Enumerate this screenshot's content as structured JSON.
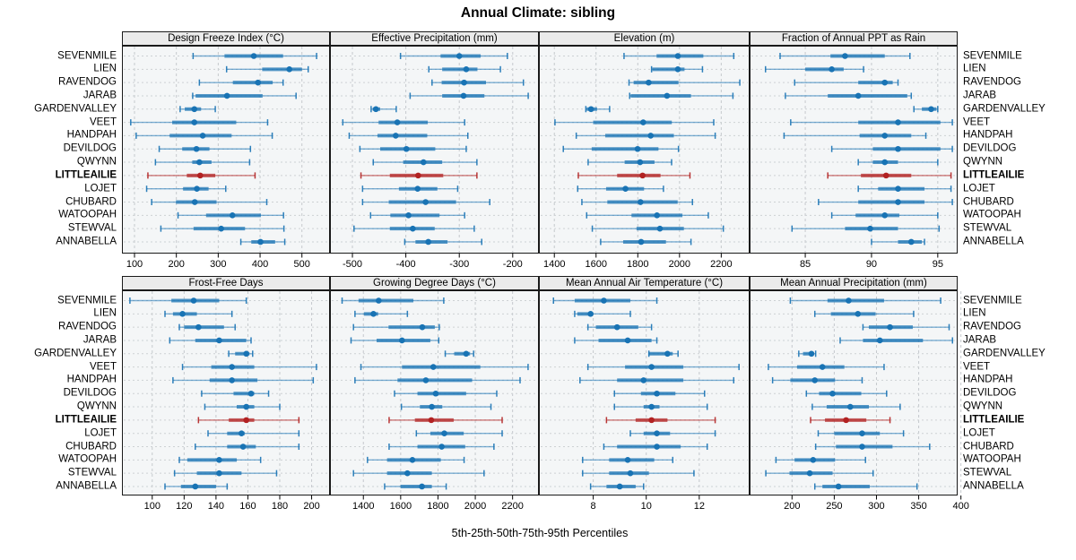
{
  "page": {
    "title": "Annual Climate: sibling",
    "footer": "5th-25th-50th-75th-95th Percentiles"
  },
  "chart_data": {
    "type": "dotplot",
    "title": "Annual Climate: sibling",
    "xlabel": "5th-25th-50th-75th-95th Percentiles",
    "legend_position": "none",
    "grid": "dashed-vertical",
    "percentiles": [
      5,
      25,
      50,
      75,
      95
    ],
    "sites": [
      "SEVENMILE",
      "LIEN",
      "RAVENDOG",
      "JARAB",
      "GARDENVALLEY",
      "VEET",
      "HANDPAH",
      "DEVILDOG",
      "QWYNN",
      "LITTLEAILIE",
      "LOJET",
      "CHUBARD",
      "WATOOPAH",
      "STEWVAL",
      "ANNABELLA"
    ],
    "highlight_site": "LITTLEAILIE",
    "colors": {
      "series": "#1873b4",
      "highlight": "#b22222",
      "panel_bg": "#f4f6f7",
      "strip_bg": "#ebebeb",
      "gridline": "#c5c9cd",
      "row_guide": "#cdd1d4",
      "border": "#1a1a1a"
    },
    "panels": [
      {
        "title": "Design Freeze Index (°C)",
        "row": 0,
        "col": 0,
        "xlim": [
          70,
          567
        ],
        "ticks": [
          100,
          200,
          300,
          400,
          500
        ],
        "values": [
          [
            240,
            315,
            385,
            455,
            535
          ],
          [
            320,
            405,
            470,
            500,
            515
          ],
          [
            255,
            335,
            395,
            430,
            455
          ],
          [
            239,
            246,
            321,
            406,
            486
          ],
          [
            209,
            220,
            243,
            259,
            293
          ],
          [
            91,
            190,
            243,
            343,
            418
          ],
          [
            104,
            184,
            263,
            332,
            429
          ],
          [
            159,
            214,
            248,
            279,
            377
          ],
          [
            150,
            238,
            255,
            284,
            375
          ],
          [
            132,
            225,
            257,
            293,
            388
          ],
          [
            129,
            216,
            249,
            277,
            318
          ],
          [
            141,
            199,
            244,
            296,
            416
          ],
          [
            204,
            271,
            334,
            402,
            456
          ],
          [
            163,
            241,
            307,
            364,
            457
          ],
          [
            354,
            379,
            401,
            436,
            459
          ]
        ]
      },
      {
        "title": "Effective Precipitation (mm)",
        "row": 0,
        "col": 1,
        "xlim": [
          -542,
          -151
        ],
        "ticks": [
          -500,
          -400,
          -300,
          -200
        ],
        "values": [
          [
            -410,
            -335,
            -300,
            -260,
            -210
          ],
          [
            -357,
            -332,
            -287,
            -266,
            -223
          ],
          [
            -351,
            -333,
            -291,
            -250,
            -180
          ],
          [
            -392,
            -332,
            -292,
            -253,
            -171
          ],
          [
            -465,
            -462,
            -456,
            -448,
            -418
          ],
          [
            -518,
            -451,
            -416,
            -359,
            -290
          ],
          [
            -506,
            -453,
            -419,
            -360,
            -284
          ],
          [
            -486,
            -448,
            -399,
            -345,
            -287
          ],
          [
            -461,
            -405,
            -367,
            -332,
            -267
          ],
          [
            -484,
            -430,
            -377,
            -330,
            -267
          ],
          [
            -481,
            -413,
            -378,
            -341,
            -303
          ],
          [
            -481,
            -432,
            -363,
            -306,
            -243
          ],
          [
            -466,
            -429,
            -395,
            -337,
            -290
          ],
          [
            -497,
            -430,
            -387,
            -346,
            -272
          ],
          [
            -402,
            -382,
            -358,
            -322,
            -258
          ]
        ]
      },
      {
        "title": "Elevation (m)",
        "row": 0,
        "col": 2,
        "xlim": [
          1326,
          2336
        ],
        "ticks": [
          1400,
          1600,
          1800,
          2000,
          2200
        ],
        "values": [
          [
            1734,
            1890,
            1992,
            2114,
            2260
          ],
          [
            1866,
            1870,
            1992,
            2024,
            2110
          ],
          [
            1758,
            1780,
            1852,
            1995,
            2289
          ],
          [
            1761,
            1766,
            1940,
            2055,
            2256
          ],
          [
            1551,
            1555,
            1576,
            1605,
            1665
          ],
          [
            1403,
            1586,
            1826,
            1963,
            2164
          ],
          [
            1505,
            1644,
            1862,
            1973,
            2171
          ],
          [
            1443,
            1579,
            1799,
            1899,
            1995
          ],
          [
            1562,
            1737,
            1811,
            1880,
            1962
          ],
          [
            1515,
            1701,
            1823,
            1909,
            2050
          ],
          [
            1512,
            1648,
            1741,
            1830,
            1923
          ],
          [
            1532,
            1654,
            1813,
            1991,
            2062
          ],
          [
            1555,
            1770,
            1892,
            2014,
            2138
          ],
          [
            1582,
            1794,
            1906,
            2021,
            2210
          ],
          [
            1622,
            1730,
            1816,
            1935,
            2055
          ]
        ]
      },
      {
        "title": "Fraction of Annual PPT as Rain",
        "row": 0,
        "col": 3,
        "xlim": [
          80.8,
          96.5
        ],
        "ticks": [
          85,
          90,
          95
        ],
        "values": [
          [
            83.1,
            86.9,
            88.0,
            91.0,
            92.9
          ],
          [
            82.0,
            85.0,
            87.0,
            87.9,
            89.4
          ],
          [
            84.2,
            89.0,
            91.0,
            91.6,
            92.0
          ],
          [
            83.5,
            86.7,
            89.0,
            92.7,
            93.0
          ],
          [
            93.2,
            93.8,
            94.5,
            94.9,
            95.0
          ],
          [
            83.9,
            89.0,
            92.0,
            95.2,
            96.1
          ],
          [
            83.4,
            89.1,
            91.0,
            93.0,
            94.1
          ],
          [
            87.0,
            90.1,
            92.0,
            95.2,
            96.1
          ],
          [
            89.0,
            90.1,
            91.0,
            92.0,
            95.0
          ],
          [
            86.7,
            89.2,
            91.1,
            93.0,
            96.0
          ],
          [
            89.0,
            90.5,
            92.0,
            94.0,
            96.0
          ],
          [
            86.0,
            89.0,
            92.0,
            94.0,
            96.1
          ],
          [
            87.0,
            88.8,
            91.0,
            92.1,
            95.0
          ],
          [
            84.0,
            88.0,
            89.9,
            92.0,
            95.1
          ],
          [
            90.0,
            92.0,
            93.0,
            93.8,
            94.0
          ]
        ]
      },
      {
        "title": "Frost-Free Days",
        "row": 1,
        "col": 0,
        "xlim": [
          81,
          211.5
        ],
        "ticks": [
          100,
          120,
          140,
          160,
          180,
          200
        ],
        "values": [
          [
            86,
            112,
            126,
            142,
            159
          ],
          [
            108,
            113,
            119,
            128,
            150
          ],
          [
            117,
            120,
            129,
            145,
            152
          ],
          [
            111,
            127,
            142,
            159,
            162
          ],
          [
            148,
            152,
            159,
            161,
            163
          ],
          [
            119,
            137,
            150,
            164,
            203
          ],
          [
            113,
            136,
            150,
            166,
            201
          ],
          [
            131,
            151,
            162,
            164,
            173
          ],
          [
            133,
            153,
            159,
            164,
            180
          ],
          [
            129,
            148,
            159,
            164,
            192
          ],
          [
            135,
            147,
            156,
            158,
            192
          ],
          [
            127,
            147,
            157,
            165,
            192
          ],
          [
            117,
            122,
            142,
            153,
            168
          ],
          [
            114,
            128,
            142,
            156,
            178
          ],
          [
            108,
            118,
            127,
            140,
            147
          ]
        ]
      },
      {
        "title": "Growing Degree Days (°C)",
        "row": 1,
        "col": 1,
        "xlim": [
          1221,
          2341
        ],
        "ticks": [
          1400,
          1600,
          1800,
          2000,
          2200
        ],
        "values": [
          [
            1286,
            1374,
            1482,
            1668,
            1831
          ],
          [
            1355,
            1403,
            1454,
            1479,
            1636
          ],
          [
            1347,
            1535,
            1716,
            1783,
            1807
          ],
          [
            1334,
            1471,
            1607,
            1759,
            1804
          ],
          [
            1839,
            1887,
            1951,
            1972,
            1991
          ],
          [
            1387,
            1607,
            1775,
            2027,
            2283
          ],
          [
            1355,
            1583,
            1735,
            1983,
            2240
          ],
          [
            1567,
            1690,
            1788,
            1951,
            2115
          ],
          [
            1604,
            1703,
            1767,
            1823,
            2084
          ],
          [
            1538,
            1676,
            1764,
            1884,
            2144
          ],
          [
            1684,
            1759,
            1834,
            1938,
            2144
          ],
          [
            1538,
            1690,
            1820,
            1946,
            2100
          ],
          [
            1422,
            1527,
            1663,
            1815,
            1940
          ],
          [
            1347,
            1527,
            1636,
            1767,
            2047
          ],
          [
            1514,
            1599,
            1714,
            1767,
            1844
          ]
        ]
      },
      {
        "title": "Mean Annual Air Temperature (°C)",
        "row": 1,
        "col": 2,
        "xlim": [
          5.95,
          13.9
        ],
        "ticks": [
          8,
          10,
          12
        ],
        "values": [
          [
            6.5,
            7.3,
            8.4,
            9.4,
            10.4
          ],
          [
            7.3,
            7.4,
            7.9,
            8.0,
            9.4
          ],
          [
            7.8,
            8.1,
            8.9,
            9.7,
            10.2
          ],
          [
            7.3,
            8.2,
            9.3,
            10.2,
            10.4
          ],
          [
            10.1,
            10.1,
            10.8,
            11.0,
            11.2
          ],
          [
            7.8,
            9.2,
            10.2,
            11.4,
            13.5
          ],
          [
            7.5,
            8.9,
            9.9,
            11.4,
            13.3
          ],
          [
            8.8,
            9.8,
            10.4,
            11.1,
            12.2
          ],
          [
            8.8,
            9.9,
            10.2,
            10.5,
            12.3
          ],
          [
            8.5,
            9.6,
            10.2,
            10.8,
            12.6
          ],
          [
            9.4,
            9.9,
            10.4,
            10.9,
            12.6
          ],
          [
            8.4,
            8.9,
            10.4,
            11.3,
            12.3
          ],
          [
            7.6,
            8.6,
            9.3,
            10.3,
            11.0
          ],
          [
            7.6,
            8.6,
            9.4,
            10.1,
            11.8
          ],
          [
            7.9,
            8.5,
            9.0,
            9.6,
            9.9
          ]
        ]
      },
      {
        "title": "Mean Annual Precipitation (mm)",
        "row": 1,
        "col": 3,
        "xlim": [
          149.8,
          396.1
        ],
        "ticks": [
          200,
          250,
          300,
          350,
          400
        ],
        "values": [
          [
            198,
            242,
            267,
            309,
            376
          ],
          [
            227,
            246,
            278,
            299,
            344
          ],
          [
            284,
            291,
            316,
            343,
            386
          ],
          [
            257,
            284,
            304,
            355,
            390
          ],
          [
            208,
            213,
            223,
            226,
            228
          ],
          [
            172,
            206,
            236,
            262,
            309
          ],
          [
            177,
            198,
            227,
            251,
            283
          ],
          [
            217,
            232,
            248,
            282,
            312
          ],
          [
            224,
            241,
            269,
            291,
            328
          ],
          [
            222,
            239,
            264,
            288,
            316
          ],
          [
            231,
            250,
            283,
            304,
            332
          ],
          [
            228,
            252,
            283,
            319,
            363
          ],
          [
            181,
            203,
            225,
            251,
            287
          ],
          [
            169,
            197,
            221,
            248,
            296
          ],
          [
            227,
            236,
            255,
            292,
            348
          ]
        ]
      }
    ]
  }
}
